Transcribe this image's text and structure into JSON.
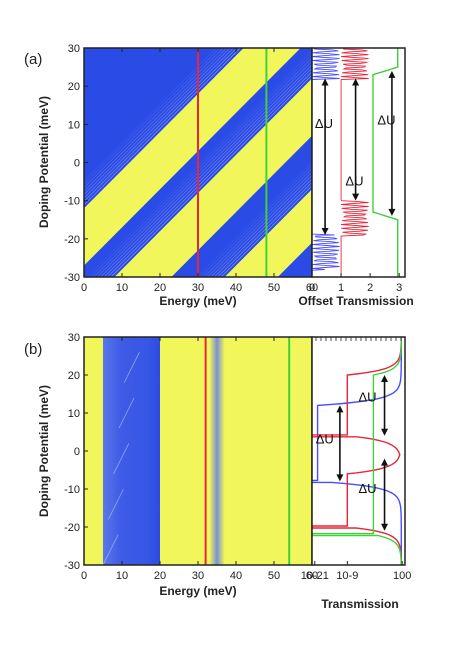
{
  "colors": {
    "gap_blue": "#2b4be6",
    "band_yellow": "#f1f75a",
    "red_line": "#e8263b",
    "green_line": "#3fd13a",
    "blue_curve": "#4a4cff"
  },
  "chart_data": [
    {
      "id": "a",
      "type": "heatmap",
      "panel_label": "(a)",
      "xlabel": "Energy (meV)",
      "ylabel": "Doping Potential (meV)",
      "xlim": [
        0,
        60
      ],
      "ylim": [
        -30,
        30
      ],
      "xticks": [
        "0",
        "10",
        "20",
        "30",
        "40",
        "50",
        "60"
      ],
      "yticks": [
        "-30",
        "-20",
        "-10",
        "0",
        "10",
        "20",
        "30"
      ],
      "grid": false,
      "description_regions": "blue = low transmission (gap), yellow = high transmission",
      "bands": [
        {
          "x_left_at_ymin": -18,
          "x_right_at_ymin": -3,
          "slope_meV_per_meV": 1.0
        },
        {
          "x_left_at_ymin": 8,
          "x_right_at_ymin": 23,
          "slope_meV_per_meV": 1.0
        },
        {
          "x_left_at_ymin": 37,
          "x_right_at_ymin": 51,
          "slope_meV_per_meV": 1.0
        }
      ],
      "vertical_lines": [
        {
          "color": "red",
          "energy": 30
        },
        {
          "color": "green",
          "energy": 48
        }
      ]
    },
    {
      "id": "a-side",
      "type": "line",
      "xlabel": "Offset Transmission",
      "xlim": [
        0,
        3.2
      ],
      "ylim": [
        -30,
        30
      ],
      "xticks": [
        "0",
        "1",
        "2",
        "3"
      ],
      "series": [
        {
          "color": "blue",
          "offset": 0,
          "gap": [
            -19,
            22
          ]
        },
        {
          "color": "red",
          "offset": 1,
          "gap": [
            -10,
            22
          ]
        },
        {
          "color": "green",
          "offset": 2,
          "gap": [
            -14,
            24
          ]
        }
      ],
      "annotations": [
        "ΔU",
        "ΔU",
        "ΔU"
      ]
    },
    {
      "id": "b",
      "type": "heatmap",
      "panel_label": "(b)",
      "xlabel": "Energy (meV)",
      "ylabel": "Doping Potential (meV)",
      "xlim": [
        0,
        60
      ],
      "ylim": [
        -30,
        30
      ],
      "xticks": [
        "0",
        "10",
        "20",
        "30",
        "40",
        "50",
        "60"
      ],
      "yticks": [
        "-30",
        "-20",
        "-10",
        "0",
        "10",
        "20",
        "30"
      ],
      "grid": false,
      "description_regions": "blue = low transmission (gap), yellow = high transmission",
      "gaps": [
        {
          "x_start": 5,
          "x_end": 20
        },
        {
          "x_start": 33,
          "x_end": 37
        }
      ],
      "vertical_lines": [
        {
          "color": "red",
          "energy": 32
        },
        {
          "color": "green",
          "energy": 54
        }
      ]
    },
    {
      "id": "b-side",
      "type": "line",
      "xlabel": "Transmission",
      "x_scale": "log",
      "xticks": [
        "10-21",
        "10-9",
        "100"
      ],
      "ylim": [
        -30,
        30
      ],
      "series": [
        {
          "color": "blue",
          "min_at": [
            -8,
            12
          ]
        },
        {
          "color": "red",
          "min_at": [
            -20,
            -6,
            4,
            20
          ]
        },
        {
          "color": "green",
          "min_at": [
            -22,
            0,
            20
          ]
        }
      ],
      "annotations": [
        "ΔU",
        "ΔU",
        "ΔU"
      ]
    }
  ]
}
